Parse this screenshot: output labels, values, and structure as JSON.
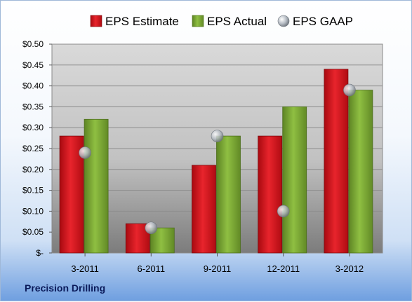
{
  "company_label": "Precision Drilling",
  "chart_data": {
    "type": "bar",
    "categories": [
      "3-2011",
      "6-2011",
      "9-2011",
      "12-2011",
      "3-2012"
    ],
    "series": [
      {
        "name": "EPS Estimate",
        "values": [
          0.28,
          0.07,
          0.21,
          0.28,
          0.44
        ],
        "color": "#d2121a",
        "mark": "bar"
      },
      {
        "name": "EPS Actual",
        "values": [
          0.32,
          0.06,
          0.28,
          0.35,
          0.39
        ],
        "color": "#77a32e",
        "mark": "bar"
      },
      {
        "name": "EPS GAAP",
        "values": [
          0.24,
          0.06,
          0.28,
          0.1,
          0.39
        ],
        "color": "#b8bec6",
        "mark": "marker"
      }
    ],
    "y_ticks": [
      "$-",
      "$0.05",
      "$0.10",
      "$0.15",
      "$0.20",
      "$0.25",
      "$0.30",
      "$0.35",
      "$0.40",
      "$0.45",
      "$0.50"
    ],
    "ylim": [
      0,
      0.5
    ],
    "y_step": 0.05,
    "grid": true,
    "legend_position": "top"
  }
}
